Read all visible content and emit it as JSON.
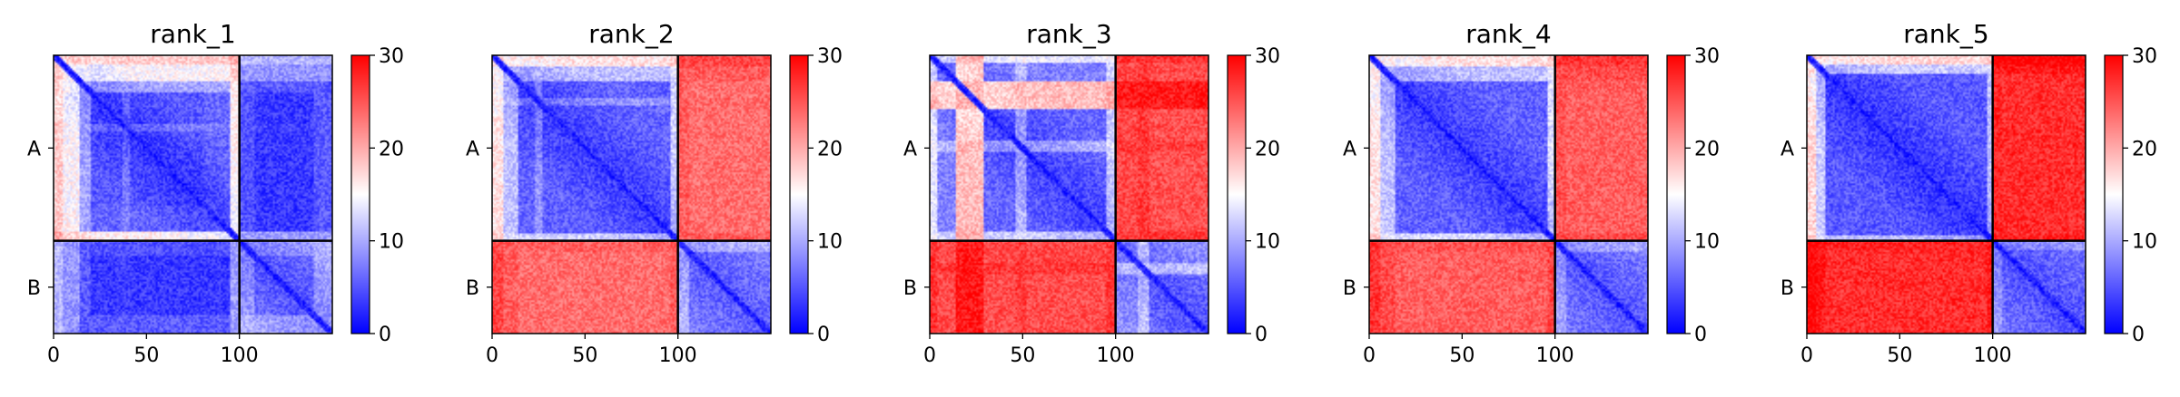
{
  "chart_data": {
    "type": "heatmap",
    "colormap": "bwr",
    "colors": {
      "low": "#0000ff",
      "mid": "#ffffff",
      "high": "#ff0000",
      "divider": "#000000"
    },
    "vmin": 0,
    "vmax": 30,
    "colorbar_ticks": [
      "0",
      "10",
      "20",
      "30"
    ],
    "x_ticks": [
      {
        "value": 0,
        "label": "0"
      },
      {
        "value": 50,
        "label": "50"
      },
      {
        "value": 100,
        "label": "100"
      }
    ],
    "xlim": [
      0,
      149
    ],
    "chain_labels": [
      "A",
      "B"
    ],
    "chain_boundary": 99,
    "panels": [
      {
        "title": "rank_1",
        "description": "Chain A (0-99) mostly blue core 15-95 with red bands near 5-15 and 95-99; chain B (100-149) blue diagonal block; A-B off-diagonal mixed, partly pinkish/blue"
      },
      {
        "title": "rank_2",
        "description": "Chain A core blue; chain B blue diagonal; A-B off-diagonal predominantly red"
      },
      {
        "title": "rank_3",
        "description": "Chain A core blue 30-95 with red band near 15-28; chain B blue diagonal with substructure; A-B off-diagonal red"
      },
      {
        "title": "rank_4",
        "description": "Chain A core blue; chain B blue diagonal; A-B off-diagonal red"
      },
      {
        "title": "rank_5",
        "description": "Chain A core blue 10-99; chain B blue diagonal; A-B off-diagonal strongly red"
      }
    ]
  }
}
